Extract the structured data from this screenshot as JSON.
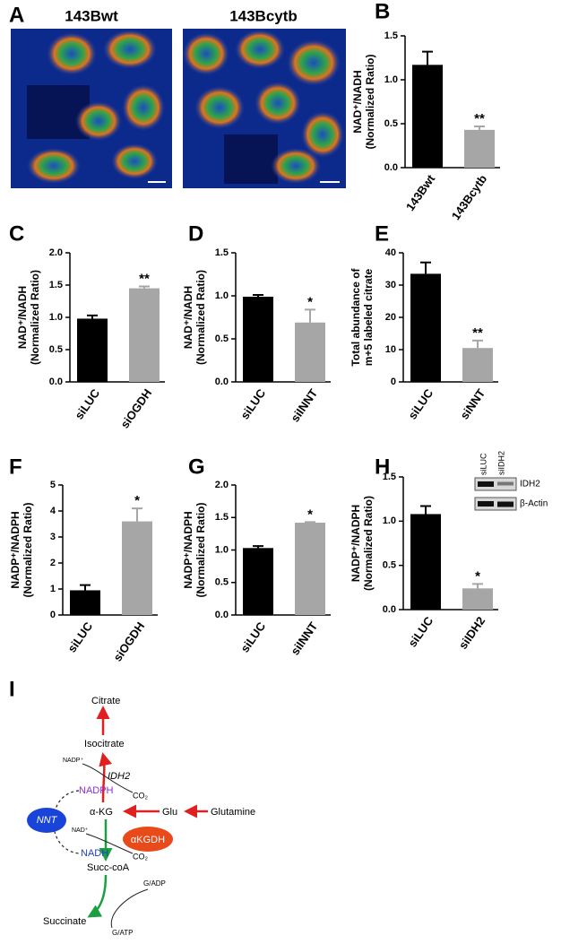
{
  "panel_a": {
    "label": "A",
    "images": [
      "143Bwt",
      "143Bcytb"
    ]
  },
  "chart_data": [
    {
      "type": "bar",
      "panel": "B",
      "ylabel": [
        "NAD⁺/NADH",
        "(Normalized Ratio)"
      ],
      "categories": [
        "143Bwt",
        "143Bcytb"
      ],
      "values": [
        1.17,
        0.43
      ],
      "errors": [
        0.15,
        0.04
      ],
      "annotations": [
        null,
        "**"
      ],
      "colors": [
        "#000000",
        "#a6a6a6"
      ],
      "ylim": [
        0,
        1.5
      ],
      "yticks": [
        {
          "value": 0,
          "label": "0.0"
        },
        {
          "value": 0.5,
          "label": "0.5"
        },
        {
          "value": 1,
          "label": "1.0"
        },
        {
          "value": 1.5,
          "label": "1.5"
        }
      ]
    },
    {
      "type": "bar",
      "panel": "C",
      "ylabel": [
        "NAD⁺/NADH",
        "(Normalized Ratio)"
      ],
      "categories": [
        "siLUC",
        "siOGDH"
      ],
      "values": [
        0.98,
        1.45
      ],
      "errors": [
        0.05,
        0.03
      ],
      "annotations": [
        null,
        "**"
      ],
      "colors": [
        "#000000",
        "#a6a6a6"
      ],
      "ylim": [
        0,
        2
      ],
      "yticks": [
        {
          "value": 0,
          "label": "0.0"
        },
        {
          "value": 0.5,
          "label": "0.5"
        },
        {
          "value": 1,
          "label": "1.0"
        },
        {
          "value": 1.5,
          "label": "1.5"
        },
        {
          "value": 2,
          "label": "2.0"
        }
      ]
    },
    {
      "type": "bar",
      "panel": "D",
      "ylabel": [
        "NAD⁺/NADH",
        "(Normalized Ratio)"
      ],
      "categories": [
        "siLUC",
        "siINNT"
      ],
      "values": [
        0.99,
        0.69
      ],
      "errors": [
        0.02,
        0.15
      ],
      "annotations": [
        null,
        "*"
      ],
      "colors": [
        "#000000",
        "#a6a6a6"
      ],
      "ylim": [
        0,
        1.5
      ],
      "yticks": [
        {
          "value": 0,
          "label": "0.0"
        },
        {
          "value": 0.5,
          "label": "0.5"
        },
        {
          "value": 1,
          "label": "1.0"
        },
        {
          "value": 1.5,
          "label": "1.5"
        }
      ]
    },
    {
      "type": "bar",
      "panel": "E",
      "ylabel": [
        "Total abundance of",
        "m+5 labeled citrate"
      ],
      "categories": [
        "siLUC",
        "siNNT"
      ],
      "values": [
        33.5,
        10.5
      ],
      "errors": [
        3.5,
        2.3
      ],
      "annotations": [
        null,
        "**"
      ],
      "colors": [
        "#000000",
        "#a6a6a6"
      ],
      "ylim": [
        0,
        40
      ],
      "yticks": [
        0,
        10,
        20,
        30,
        40
      ]
    },
    {
      "type": "bar",
      "panel": "F",
      "ylabel": [
        "NADP⁺/NADPH",
        "(Normalized Ratio)"
      ],
      "categories": [
        "siLUC",
        "siOGDH"
      ],
      "values": [
        0.95,
        3.6
      ],
      "errors": [
        0.2,
        0.5
      ],
      "annotations": [
        null,
        "*"
      ],
      "colors": [
        "#000000",
        "#a6a6a6"
      ],
      "ylim": [
        0,
        5
      ],
      "yticks": [
        0,
        1,
        2,
        3,
        4,
        5
      ]
    },
    {
      "type": "bar",
      "panel": "G",
      "ylabel": [
        "NADP⁺/NADPH",
        "(Normalized Ratio)"
      ],
      "categories": [
        "siLUC",
        "siINNT"
      ],
      "values": [
        1.03,
        1.42
      ],
      "errors": [
        0.03,
        0.01
      ],
      "annotations": [
        null,
        "*"
      ],
      "colors": [
        "#000000",
        "#a6a6a6"
      ],
      "ylim": [
        0,
        2
      ],
      "yticks": [
        {
          "value": 0,
          "label": "0.0"
        },
        {
          "value": 0.5,
          "label": "0.5"
        },
        {
          "value": 1,
          "label": "1.0"
        },
        {
          "value": 1.5,
          "label": "1.5"
        },
        {
          "value": 2,
          "label": "2.0"
        }
      ]
    },
    {
      "type": "bar",
      "panel": "H",
      "ylabel": [
        "NADP⁺/NADPH",
        "(Normalized Ratio)"
      ],
      "categories": [
        "siLUC",
        "siIDH2"
      ],
      "values": [
        1.08,
        0.24
      ],
      "errors": [
        0.09,
        0.05
      ],
      "annotations": [
        null,
        "*"
      ],
      "colors": [
        "#000000",
        "#a6a6a6"
      ],
      "ylim": [
        0,
        1.5
      ],
      "yticks": [
        {
          "value": 0,
          "label": "0.0"
        },
        {
          "value": 0.5,
          "label": "0.5"
        },
        {
          "value": 1,
          "label": "1.0"
        },
        {
          "value": 1.5,
          "label": "1.5"
        }
      ],
      "inset": {
        "lanes": [
          "siLUC",
          "siIDH2"
        ],
        "bands": [
          "IDH2",
          "β-Actin"
        ]
      }
    }
  ],
  "panel_i": {
    "label": "I",
    "citrate": "Citrate",
    "isocitrate": "Isocitrate",
    "nadp": "NADP⁺",
    "idh2": "IDH2",
    "nadph": "NADPH",
    "co2_top": "CO₂",
    "nnt": "NNT",
    "akg": "α-KG",
    "glu": "Glu",
    "glutamine": "Glutamine",
    "nad": "NAD⁺",
    "akgdh": "αKGDH",
    "nadh": "NADH",
    "co2_bottom": "CO₂",
    "succcoa": "Succ-coA",
    "gadp": "G/ADP",
    "succinate": "Succinate",
    "gatp": "G/ATP"
  }
}
